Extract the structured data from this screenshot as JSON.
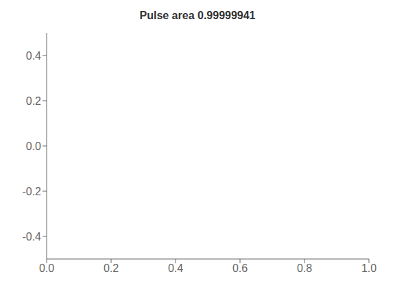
{
  "chart_data": {
    "type": "line",
    "title": "Pulse area 0.99999941",
    "xlim": [
      0.0,
      1.0
    ],
    "ylim": [
      -0.5,
      0.5
    ],
    "xticks": [
      {
        "value": 0.0,
        "label": "0.0"
      },
      0.2,
      0.4,
      0.6,
      0.8,
      {
        "value": 1.0,
        "label": "1.0"
      }
    ],
    "yticks": [
      -0.4,
      -0.2,
      {
        "value": 0.0,
        "label": "0.0"
      },
      0.2,
      0.4
    ],
    "grid": false
  }
}
